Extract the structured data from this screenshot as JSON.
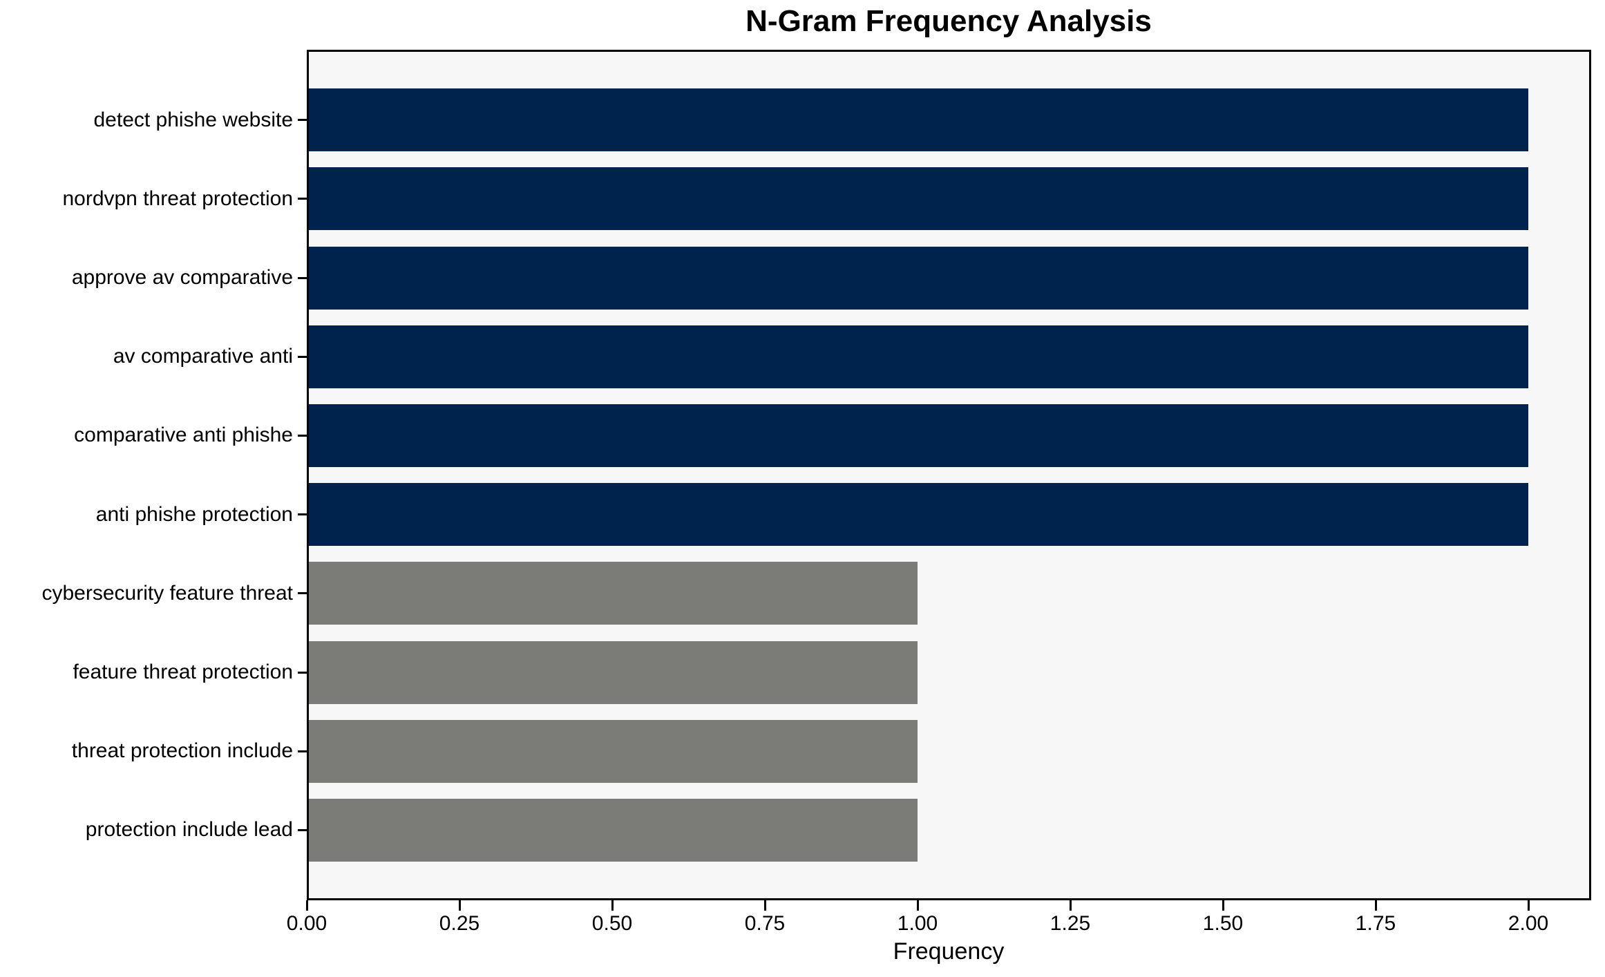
{
  "figure": {
    "background": "#ffffff"
  },
  "chart_data": {
    "type": "bar",
    "orientation": "horizontal",
    "title": "N-Gram Frequency Analysis",
    "xlabel": "Frequency",
    "ylabel": "",
    "categories": [
      "detect phishe website",
      "nordvpn threat protection",
      "approve av comparative",
      "av comparative anti",
      "comparative anti phishe",
      "anti phishe protection",
      "cybersecurity feature threat",
      "feature threat protection",
      "threat protection include",
      "protection include lead"
    ],
    "values": [
      2,
      2,
      2,
      2,
      2,
      2,
      1,
      1,
      1,
      1
    ],
    "bar_colors": [
      "#00234e",
      "#00234e",
      "#00234e",
      "#00234e",
      "#00234e",
      "#00234e",
      "#7b7b78",
      "#7b7b78",
      "#7b7b78",
      "#7b7b78"
    ],
    "xlim": [
      0,
      2.1
    ],
    "xticks": [
      0.0,
      0.25,
      0.5,
      0.75,
      1.0,
      1.25,
      1.5,
      1.75,
      2.0
    ],
    "xtick_labels": [
      "0.00",
      "0.25",
      "0.50",
      "0.75",
      "1.00",
      "1.25",
      "1.50",
      "1.75",
      "2.00"
    ],
    "plot_background": "#f7f7f7",
    "axis_color": "#000000",
    "grid": false,
    "legend": false
  }
}
